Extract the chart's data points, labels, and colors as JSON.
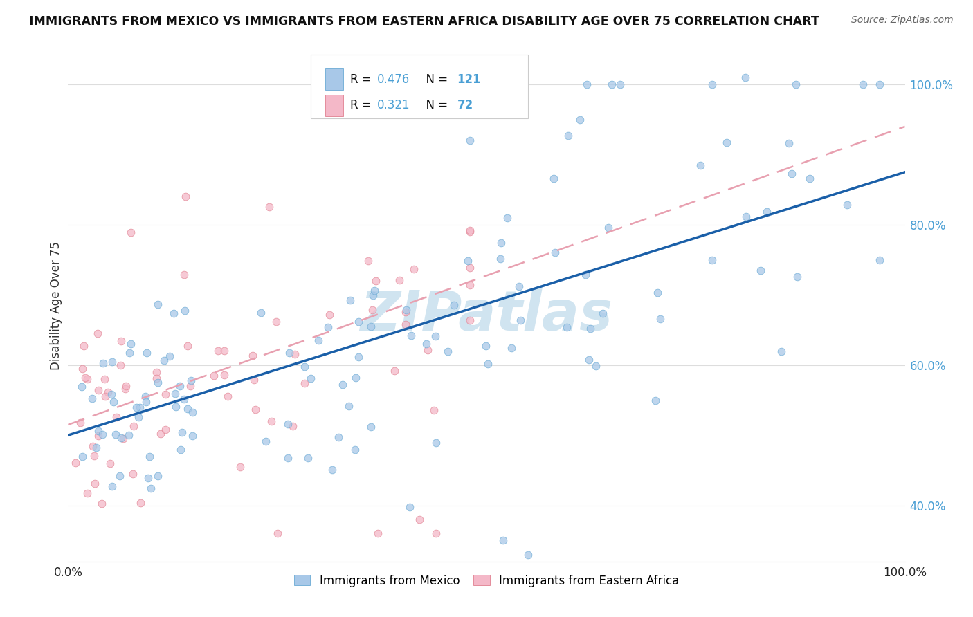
{
  "title": "IMMIGRANTS FROM MEXICO VS IMMIGRANTS FROM EASTERN AFRICA DISABILITY AGE OVER 75 CORRELATION CHART",
  "source": "Source: ZipAtlas.com",
  "ylabel": "Disability Age Over 75",
  "legend_label1": "Immigrants from Mexico",
  "legend_label2": "Immigrants from Eastern Africa",
  "R1": 0.476,
  "N1": 121,
  "R2": 0.321,
  "N2": 72,
  "blue_color": "#a8c8e8",
  "blue_edge": "#6aaad4",
  "pink_color": "#f4b8c8",
  "pink_edge": "#e08090",
  "trendline_blue": "#1a5fa8",
  "trendline_pink": "#e8a0b0",
  "watermark_color": "#d0e4f0",
  "xlim": [
    0.0,
    1.0
  ],
  "ylim": [
    0.32,
    1.05
  ],
  "right_ytick_vals": [
    0.4,
    0.6,
    0.8,
    1.0
  ],
  "right_yticklabels": [
    "40.0%",
    "60.0%",
    "80.0%",
    "100.0%"
  ],
  "blue_trend_y0": 0.5,
  "blue_trend_y1": 0.875,
  "pink_trend_y0": 0.515,
  "pink_trend_y1": 0.94,
  "grid_color": "#dddddd",
  "title_color": "#111111",
  "source_color": "#666666",
  "right_tick_color": "#4a9fd4",
  "scatter_size": 60,
  "scatter_alpha": 0.75
}
